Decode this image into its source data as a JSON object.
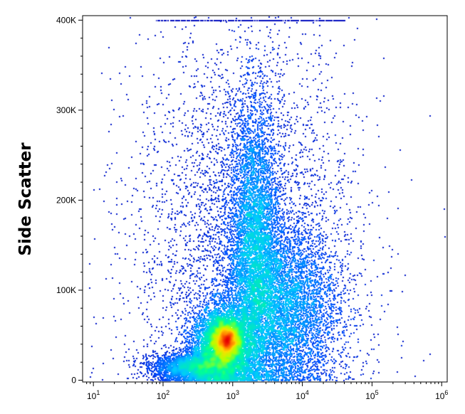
{
  "chart_data": {
    "type": "scatter",
    "plot_style": "density-dot-plot",
    "title": "",
    "xlabel": "",
    "ylabel": "Side Scatter",
    "x_scale": "log",
    "xlim": [
      7,
      1200000
    ],
    "ylim": [
      -2000,
      405000
    ],
    "x_ticks": [
      {
        "base": "10",
        "exp": "1",
        "value": 10
      },
      {
        "base": "10",
        "exp": "2",
        "value": 100
      },
      {
        "base": "10",
        "exp": "3",
        "value": 1000
      },
      {
        "base": "10",
        "exp": "4",
        "value": 10000
      },
      {
        "base": "10",
        "exp": "5",
        "value": 100000
      },
      {
        "base": "10",
        "exp": "6",
        "value": 1000000
      }
    ],
    "y_ticks": [
      {
        "label": "0",
        "value": 0
      },
      {
        "label": "100K",
        "value": 100000
      },
      {
        "label": "200K",
        "value": 200000
      },
      {
        "label": "300K",
        "value": 300000
      },
      {
        "label": "400K",
        "value": 400000
      }
    ],
    "color_scale": [
      "#0000b4",
      "#0050ff",
      "#00c8ff",
      "#00ff96",
      "#b4ff00",
      "#ffdc00",
      "#ff7800",
      "#e60000"
    ],
    "populations": [
      {
        "x_center": 800,
        "y_center": 45000,
        "x_sd_log10": 0.09,
        "y_sd": 9000,
        "peak": "red",
        "share": 0.1
      },
      {
        "x_center": 700,
        "y_center": 40000,
        "x_sd_log10": 0.22,
        "y_sd": 22000,
        "peak": "yellow-green",
        "share": 0.25
      },
      {
        "x_center": 2000,
        "y_center": 150000,
        "x_sd_log10": 0.18,
        "y_sd": 80000,
        "peak": "cyan",
        "share": 0.25
      },
      {
        "x_center": 5000,
        "y_center": 80000,
        "x_sd_log10": 0.4,
        "y_sd": 45000,
        "peak": "blue",
        "share": 0.25
      },
      {
        "x_center": 300,
        "y_center": 15000,
        "x_sd_log10": 0.3,
        "y_sd": 8000,
        "peak": "blue",
        "share": 0.07
      },
      {
        "x_center": 1500,
        "y_center": 150000,
        "x_sd_log10": 0.8,
        "y_sd": 120000,
        "peak": "dark-blue",
        "share": 0.08
      }
    ],
    "saturation_line": {
      "y": 400000,
      "x_from": 80,
      "x_to": 40000
    }
  }
}
